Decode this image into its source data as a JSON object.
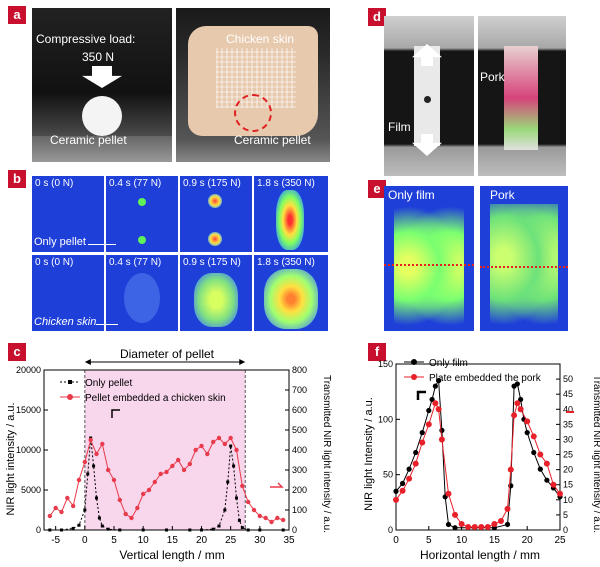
{
  "panel_labels": {
    "a": "a",
    "b": "b",
    "c": "c",
    "d": "d",
    "e": "e",
    "f": "f"
  },
  "panel_a": {
    "load_text": "Compressive load:",
    "load_value": "350 N",
    "pellet_label_left": "Ceramic pellet",
    "skin_label": "Chicken skin",
    "pellet_label_right": "Ceramic pellet"
  },
  "panel_b": {
    "times": [
      "0 s (0 N)",
      "0.4 s (77 N)",
      "0.9 s (175 N)",
      "1.8 s (350 N)"
    ],
    "row1_label": "Only pellet",
    "row2_label": "Chicken skin"
  },
  "panel_d": {
    "film_label": "Film",
    "pork_label": "Pork"
  },
  "panel_e": {
    "left_label": "Only film",
    "right_label": "Pork"
  },
  "chart_data": [
    {
      "id": "c",
      "type": "line",
      "title": "Diameter of pellet",
      "xlabel": "Vertical length / mm",
      "ylabel": "NIR light intensity / a.u.",
      "y2label": "Transmitted NIR light intensity / a.u.",
      "xlim": [
        -7,
        35
      ],
      "ylim": [
        0,
        20000
      ],
      "y2lim": [
        0,
        800
      ],
      "xticks": [
        -5,
        0,
        5,
        10,
        15,
        20,
        25,
        30,
        35
      ],
      "yticks": [
        0,
        5000,
        10000,
        15000,
        20000
      ],
      "y2ticks": [
        0,
        100,
        200,
        300,
        400,
        500,
        600,
        700,
        800
      ],
      "shaded_x": [
        0,
        27.5
      ],
      "series": [
        {
          "name": "Only pellet",
          "axis": "left",
          "color": "#000000",
          "x": [
            -6,
            -4,
            -2,
            -1,
            0,
            0.5,
            1,
            1.5,
            2,
            2.5,
            3,
            4,
            6,
            10,
            14,
            18,
            20,
            22,
            23,
            24,
            24.5,
            25,
            25.5,
            26,
            26.5,
            27,
            28,
            30,
            34
          ],
          "y": [
            0,
            0,
            200,
            600,
            2500,
            7000,
            11500,
            8000,
            4000,
            1500,
            500,
            100,
            0,
            0,
            0,
            0,
            0,
            100,
            500,
            2500,
            6000,
            10500,
            8000,
            4000,
            1200,
            300,
            0,
            0,
            0
          ]
        },
        {
          "name": "Pellet embedded a chicken skin",
          "axis": "right",
          "color": "#e83a4a",
          "x": [
            -6,
            -5,
            -4,
            -3,
            -2,
            -1,
            0,
            1,
            2,
            3,
            4,
            5,
            6,
            7,
            8,
            9,
            10,
            11,
            12,
            13,
            14,
            15,
            16,
            17,
            18,
            19,
            20,
            21,
            22,
            23,
            24,
            25,
            26,
            27,
            28,
            29,
            30,
            31,
            32,
            33,
            34
          ],
          "y": [
            70,
            110,
            90,
            160,
            120,
            250,
            340,
            450,
            380,
            430,
            300,
            250,
            150,
            80,
            60,
            110,
            180,
            200,
            240,
            280,
            290,
            320,
            350,
            300,
            330,
            400,
            420,
            380,
            440,
            460,
            430,
            460,
            400,
            220,
            140,
            100,
            70,
            60,
            40,
            60,
            50
          ]
        }
      ]
    },
    {
      "id": "f",
      "type": "line",
      "xlabel": "Horizontal length / mm",
      "ylabel": "NIR light Intensity / a.u.",
      "y2label": "Transmitted NIR light intensity / a.u.",
      "xlim": [
        0,
        25
      ],
      "ylim": [
        0,
        150
      ],
      "y2lim": [
        0,
        55
      ],
      "xticks": [
        0,
        5,
        10,
        15,
        20,
        25
      ],
      "yticks": [
        0,
        50,
        100,
        150
      ],
      "y2ticks": [
        0,
        5,
        10,
        15,
        20,
        25,
        30,
        35,
        40,
        45,
        50
      ],
      "series": [
        {
          "name": "Only film",
          "axis": "left",
          "color": "#000000",
          "x": [
            0,
            1,
            2,
            3,
            4,
            5,
            5.5,
            6,
            6.5,
            7,
            7.5,
            8,
            9,
            12,
            15,
            17,
            17.5,
            18,
            18.5,
            19,
            19.5,
            20,
            21,
            22,
            23,
            24,
            25
          ],
          "y": [
            35,
            42,
            55,
            70,
            88,
            108,
            118,
            130,
            135,
            90,
            30,
            5,
            2,
            2,
            2,
            5,
            40,
            130,
            132,
            118,
            100,
            88,
            70,
            55,
            45,
            38,
            30
          ]
        },
        {
          "name": "Plate embedded the pork",
          "axis": "right",
          "color": "#e8202a",
          "x": [
            0,
            1,
            2,
            3,
            4,
            5,
            6,
            6.5,
            7,
            8,
            9,
            10,
            11,
            12,
            13,
            14,
            15,
            16,
            17,
            17.5,
            18,
            18.5,
            19,
            20,
            21,
            22,
            23,
            24,
            25
          ],
          "y": [
            10,
            13,
            17,
            22,
            29,
            35,
            42,
            40,
            30,
            12,
            5,
            2,
            1,
            1,
            1,
            1,
            2,
            3,
            7,
            20,
            38,
            42,
            40,
            36,
            31,
            25,
            22,
            15,
            12
          ]
        }
      ]
    }
  ]
}
